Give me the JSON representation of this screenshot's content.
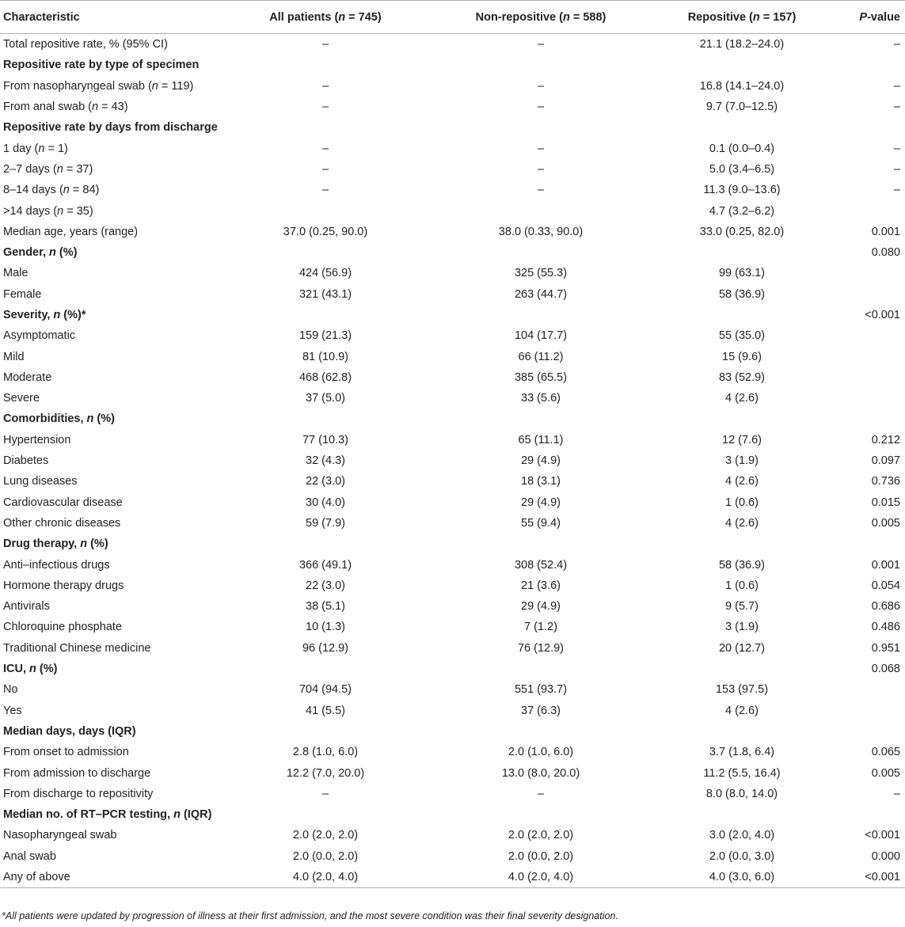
{
  "headers": [
    "Characteristic",
    "All patients (n = 745)",
    "Non-repositive (n = 588)",
    "Repositive (n = 157)",
    "P-value"
  ],
  "rows": [
    {
      "section": false,
      "cells": [
        "Total repositive rate, % (95% CI)",
        "–",
        "–",
        "21.1 (18.2–24.0)",
        "–"
      ]
    },
    {
      "section": true,
      "cells": [
        "Repositive rate by type of specimen",
        "",
        "",
        "",
        ""
      ]
    },
    {
      "section": false,
      "cells": [
        "From nasopharyngeal swab (n = 119)",
        "–",
        "–",
        "16.8 (14.1–24.0)",
        "–"
      ]
    },
    {
      "section": false,
      "cells": [
        "From anal swab (n = 43)",
        "–",
        "–",
        "9.7 (7.0–12.5)",
        "–"
      ]
    },
    {
      "section": true,
      "cells": [
        "Repositive rate by days from discharge",
        "",
        "",
        "",
        ""
      ]
    },
    {
      "section": false,
      "cells": [
        "1 day (n = 1)",
        "–",
        "–",
        "0.1 (0.0–0.4)",
        "–"
      ]
    },
    {
      "section": false,
      "cells": [
        "2–7 days (n = 37)",
        "–",
        "–",
        "5.0 (3.4–6.5)",
        "–"
      ]
    },
    {
      "section": false,
      "cells": [
        "8–14 days (n = 84)",
        "–",
        "–",
        "11.3 (9.0–13.6)",
        "–"
      ]
    },
    {
      "section": false,
      "cells": [
        ">14 days (n = 35)",
        "",
        "",
        "4.7 (3.2–6.2)",
        ""
      ]
    },
    {
      "section": false,
      "cells": [
        "Median age, years (range)",
        "37.0 (0.25, 90.0)",
        "38.0 (0.33, 90.0)",
        "33.0 (0.25, 82.0)",
        "0.001"
      ]
    },
    {
      "section": true,
      "cells": [
        "Gender, n (%)",
        "",
        "",
        "",
        "0.080"
      ]
    },
    {
      "section": false,
      "cells": [
        "Male",
        "424 (56.9)",
        "325 (55.3)",
        "99 (63.1)",
        ""
      ]
    },
    {
      "section": false,
      "cells": [
        "Female",
        "321 (43.1)",
        "263 (44.7)",
        "58 (36.9)",
        ""
      ]
    },
    {
      "section": true,
      "cells": [
        "Severity, n (%)*",
        "",
        "",
        "",
        "<0.001"
      ]
    },
    {
      "section": false,
      "cells": [
        "Asymptomatic",
        "159 (21.3)",
        "104 (17.7)",
        "55 (35.0)",
        ""
      ]
    },
    {
      "section": false,
      "cells": [
        "Mild",
        "81 (10.9)",
        "66 (11.2)",
        "15 (9.6)",
        ""
      ]
    },
    {
      "section": false,
      "cells": [
        "Moderate",
        "468 (62.8)",
        "385 (65.5)",
        "83 (52.9)",
        ""
      ]
    },
    {
      "section": false,
      "cells": [
        "Severe",
        "37 (5.0)",
        "33 (5.6)",
        "4 (2.6)",
        ""
      ]
    },
    {
      "section": true,
      "cells": [
        "Comorbidities, n (%)",
        "",
        "",
        "",
        ""
      ]
    },
    {
      "section": false,
      "cells": [
        "Hypertension",
        "77 (10.3)",
        "65 (11.1)",
        "12 (7.6)",
        "0.212"
      ]
    },
    {
      "section": false,
      "cells": [
        "Diabetes",
        "32 (4.3)",
        "29 (4.9)",
        "3 (1.9)",
        "0.097"
      ]
    },
    {
      "section": false,
      "cells": [
        "Lung diseases",
        "22 (3.0)",
        "18 (3.1)",
        "4 (2.6)",
        "0.736"
      ]
    },
    {
      "section": false,
      "cells": [
        "Cardiovascular disease",
        "30 (4.0)",
        "29 (4.9)",
        "1 (0.6)",
        "0.015"
      ]
    },
    {
      "section": false,
      "cells": [
        "Other chronic diseases",
        "59 (7.9)",
        "55 (9.4)",
        "4 (2.6)",
        "0.005"
      ]
    },
    {
      "section": true,
      "cells": [
        "Drug therapy, n (%)",
        "",
        "",
        "",
        ""
      ]
    },
    {
      "section": false,
      "cells": [
        "Anti–infectious drugs",
        "366 (49.1)",
        "308 (52.4)",
        "58 (36.9)",
        "0.001"
      ]
    },
    {
      "section": false,
      "cells": [
        "Hormone therapy drugs",
        "22 (3.0)",
        "21 (3.6)",
        "1 (0.6)",
        "0.054"
      ]
    },
    {
      "section": false,
      "cells": [
        "Antivirals",
        "38 (5.1)",
        "29 (4.9)",
        "9 (5.7)",
        "0.686"
      ]
    },
    {
      "section": false,
      "cells": [
        "Chloroquine phosphate",
        "10 (1.3)",
        "7 (1.2)",
        "3 (1.9)",
        "0.486"
      ]
    },
    {
      "section": false,
      "cells": [
        "Traditional Chinese medicine",
        "96 (12.9)",
        "76 (12.9)",
        "20 (12.7)",
        "0.951"
      ]
    },
    {
      "section": true,
      "cells": [
        "ICU, n (%)",
        "",
        "",
        "",
        "0.068"
      ]
    },
    {
      "section": false,
      "cells": [
        "No",
        "704 (94.5)",
        "551 (93.7)",
        "153 (97.5)",
        ""
      ]
    },
    {
      "section": false,
      "cells": [
        "Yes",
        "41 (5.5)",
        "37 (6.3)",
        "4 (2.6)",
        ""
      ]
    },
    {
      "section": true,
      "cells": [
        "Median days, days (IQR)",
        "",
        "",
        "",
        ""
      ]
    },
    {
      "section": false,
      "cells": [
        "From onset to admission",
        "2.8 (1.0, 6.0)",
        "2.0 (1.0, 6.0)",
        "3.7 (1.8, 6.4)",
        "0.065"
      ]
    },
    {
      "section": false,
      "cells": [
        "From admission to discharge",
        "12.2 (7.0, 20.0)",
        "13.0 (8.0, 20.0)",
        "11.2 (5.5, 16.4)",
        "0.005"
      ]
    },
    {
      "section": false,
      "cells": [
        "From discharge to repositivity",
        "–",
        "–",
        "8.0 (8.0, 14.0)",
        "–"
      ]
    },
    {
      "section": true,
      "cells": [
        "Median no. of RT–PCR testing, n (IQR)",
        "",
        "",
        "",
        ""
      ]
    },
    {
      "section": false,
      "cells": [
        "Nasopharyngeal swab",
        "2.0 (2.0, 2.0)",
        "2.0 (2.0, 2.0)",
        "3.0 (2.0, 4.0)",
        "<0.001"
      ]
    },
    {
      "section": false,
      "cells": [
        "Anal swab",
        "2.0 (0.0, 2.0)",
        "2.0 (0.0, 2.0)",
        "2.0 (0.0, 3.0)",
        "0.000"
      ]
    },
    {
      "section": false,
      "cells": [
        "Any of above",
        "4.0 (2.0, 4.0)",
        "4.0 (2.0, 4.0)",
        "4.0 (3.0, 6.0)",
        "<0.001"
      ]
    }
  ],
  "footnote": "*All patients were updated by progression of illness at their first admission, and the most severe condition was their final severity designation."
}
